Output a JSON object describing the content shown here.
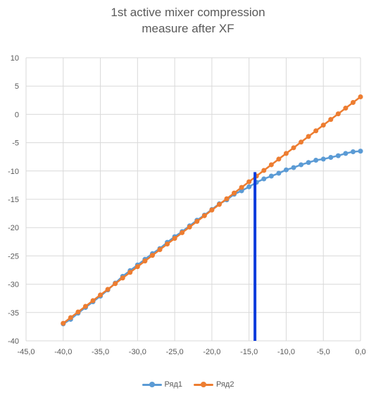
{
  "chart_data": {
    "type": "scatter",
    "title_lines": [
      "1st active mixer compression",
      "measure after XF"
    ],
    "xlabel": "",
    "ylabel": "",
    "xlim": [
      -45,
      0
    ],
    "ylim": [
      -40,
      10
    ],
    "x_ticks": [
      "-45,0",
      "-40,0",
      "-35,0",
      "-30,0",
      "-25,0",
      "-20,0",
      "-15,0",
      "-10,0",
      "-5,0",
      "0,0"
    ],
    "y_ticks": [
      "10",
      "5",
      "0",
      "-5",
      "-10",
      "-15",
      "-20",
      "-25",
      "-30",
      "-35",
      "-40"
    ],
    "grid": true,
    "legend_position": "bottom",
    "series": [
      {
        "name": "Ряд1",
        "color": "#5b9bd5",
        "points": [
          [
            -40,
            -37.0
          ],
          [
            -39,
            -36.2
          ],
          [
            -38,
            -35.1
          ],
          [
            -37,
            -34.1
          ],
          [
            -36,
            -33.1
          ],
          [
            -35,
            -32.1
          ],
          [
            -34,
            -31.0
          ],
          [
            -33,
            -29.8
          ],
          [
            -32,
            -28.6
          ],
          [
            -31,
            -27.6
          ],
          [
            -30,
            -26.6
          ],
          [
            -29,
            -25.6
          ],
          [
            -28,
            -24.6
          ],
          [
            -27,
            -23.7
          ],
          [
            -26,
            -22.6
          ],
          [
            -25,
            -21.6
          ],
          [
            -24,
            -20.7
          ],
          [
            -23,
            -19.7
          ],
          [
            -22,
            -18.7
          ],
          [
            -21,
            -17.8
          ],
          [
            -20,
            -16.8
          ],
          [
            -19,
            -15.8
          ],
          [
            -18,
            -15.1
          ],
          [
            -17,
            -14.1
          ],
          [
            -16,
            -13.5
          ],
          [
            -15,
            -12.8
          ],
          [
            -14,
            -12.0
          ],
          [
            -13,
            -11.4
          ],
          [
            -12,
            -10.9
          ],
          [
            -11,
            -10.4
          ],
          [
            -10,
            -9.8
          ],
          [
            -9,
            -9.4
          ],
          [
            -8,
            -8.9
          ],
          [
            -7,
            -8.5
          ],
          [
            -6,
            -8.1
          ],
          [
            -5,
            -7.9
          ],
          [
            -4,
            -7.6
          ],
          [
            -3,
            -7.3
          ],
          [
            -2,
            -6.9
          ],
          [
            -1,
            -6.6
          ],
          [
            0,
            -6.5
          ]
        ]
      },
      {
        "name": "Ряд2",
        "color": "#ed7d31",
        "points": [
          [
            -40,
            -36.9
          ],
          [
            -39,
            -35.9
          ],
          [
            -38,
            -34.9
          ],
          [
            -37,
            -33.9
          ],
          [
            -36,
            -32.9
          ],
          [
            -35,
            -31.9
          ],
          [
            -34,
            -30.9
          ],
          [
            -33,
            -29.9
          ],
          [
            -32,
            -28.9
          ],
          [
            -31,
            -27.9
          ],
          [
            -30,
            -26.9
          ],
          [
            -29,
            -25.9
          ],
          [
            -28,
            -24.9
          ],
          [
            -27,
            -23.9
          ],
          [
            -26,
            -22.9
          ],
          [
            -25,
            -21.9
          ],
          [
            -24,
            -20.9
          ],
          [
            -23,
            -19.9
          ],
          [
            -22,
            -18.9
          ],
          [
            -21,
            -17.9
          ],
          [
            -20,
            -16.9
          ],
          [
            -19,
            -15.9
          ],
          [
            -18,
            -14.9
          ],
          [
            -17,
            -13.9
          ],
          [
            -16,
            -12.9
          ],
          [
            -15,
            -11.9
          ],
          [
            -14,
            -10.9
          ],
          [
            -13,
            -9.9
          ],
          [
            -12,
            -8.9
          ],
          [
            -11,
            -7.9
          ],
          [
            -10,
            -6.9
          ],
          [
            -9,
            -5.9
          ],
          [
            -8,
            -4.9
          ],
          [
            -7,
            -3.9
          ],
          [
            -6,
            -2.9
          ],
          [
            -5,
            -1.9
          ],
          [
            -4,
            -0.9
          ],
          [
            -3,
            0.1
          ],
          [
            -2,
            1.1
          ],
          [
            -1,
            2.1
          ],
          [
            0,
            3.1
          ]
        ]
      }
    ],
    "annotation_line": {
      "x": -14.2,
      "y_from": -40,
      "y_to": -10.2,
      "color": "#0b3bdc"
    }
  }
}
